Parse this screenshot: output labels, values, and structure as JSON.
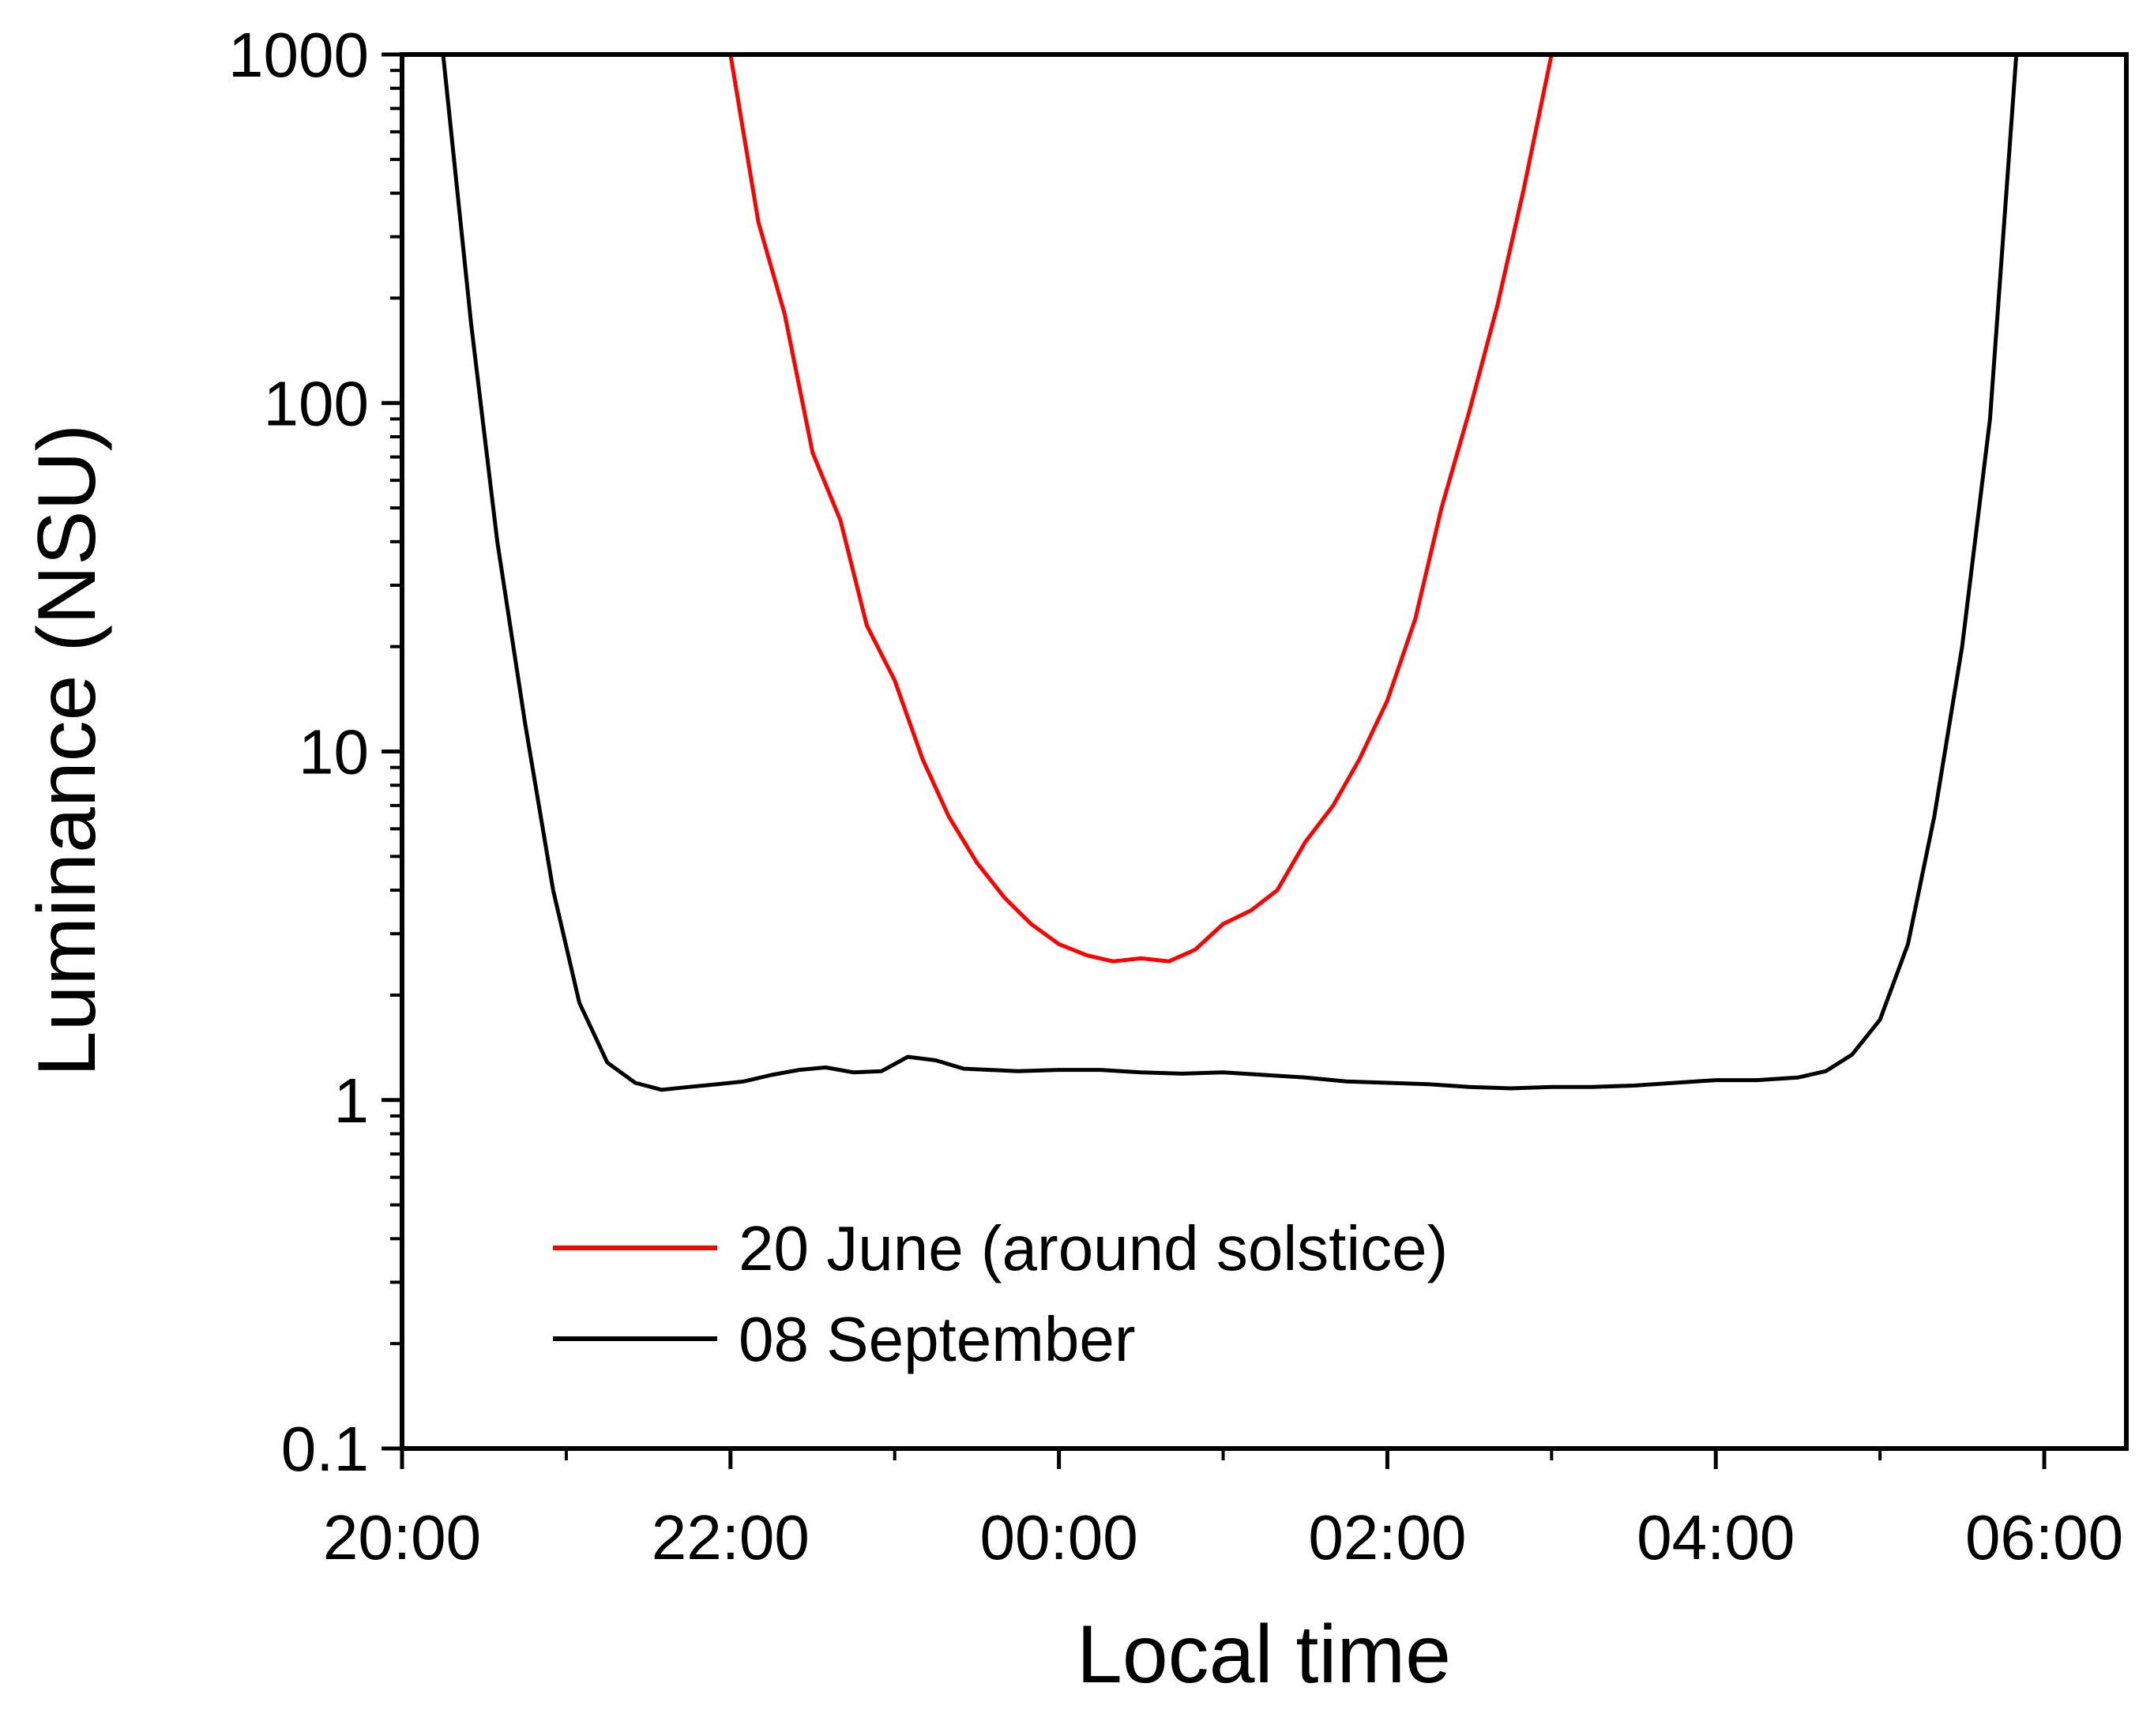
{
  "chart_data": {
    "type": "line",
    "xlabel": "Local time",
    "ylabel": "Luminance (NSU)",
    "yscale": "log",
    "ylim": [
      0.1,
      1000
    ],
    "xlim_hours": [
      20.0,
      30.5
    ],
    "x_ticks": [
      {
        "value": 20,
        "label": "20:00"
      },
      {
        "value": 22,
        "label": "22:00"
      },
      {
        "value": 24,
        "label": "00:00"
      },
      {
        "value": 26,
        "label": "02:00"
      },
      {
        "value": 28,
        "label": "04:00"
      },
      {
        "value": 30,
        "label": "06:00"
      }
    ],
    "y_ticks": [
      {
        "value": 0.1,
        "label": "0.1"
      },
      {
        "value": 1,
        "label": "1"
      },
      {
        "value": 10,
        "label": "10"
      },
      {
        "value": 100,
        "label": "100"
      },
      {
        "value": 1000,
        "label": "1000"
      }
    ],
    "legend_position": "bottom-left",
    "series": [
      {
        "name": "20 June (around solstice)",
        "color": "#ff0000",
        "x": [
          22.0,
          22.17,
          22.33,
          22.5,
          22.67,
          22.83,
          23.0,
          23.17,
          23.33,
          23.5,
          23.67,
          23.83,
          24.0,
          24.17,
          24.33,
          24.5,
          24.67,
          24.83,
          25.0,
          25.17,
          25.33,
          25.5,
          25.67,
          25.83,
          26.0,
          26.17,
          26.33,
          26.5,
          26.67,
          26.83,
          27.0
        ],
        "y": [
          1000,
          330,
          180,
          72,
          46,
          23,
          16,
          9.5,
          6.5,
          4.8,
          3.8,
          3.2,
          2.8,
          2.6,
          2.5,
          2.55,
          2.5,
          2.7,
          3.2,
          3.5,
          4.0,
          5.5,
          7.0,
          9.5,
          14,
          24,
          50,
          95,
          190,
          410,
          1000
        ]
      },
      {
        "name": "08 September",
        "color": "#000000",
        "x": [
          20.25,
          20.42,
          20.58,
          20.75,
          20.92,
          21.08,
          21.25,
          21.42,
          21.58,
          21.75,
          21.92,
          22.08,
          22.25,
          22.42,
          22.58,
          22.75,
          22.92,
          23.08,
          23.25,
          23.42,
          23.58,
          23.75,
          24.0,
          24.25,
          24.5,
          24.75,
          25.0,
          25.25,
          25.5,
          25.75,
          26.0,
          26.25,
          26.5,
          26.75,
          27.0,
          27.25,
          27.5,
          27.75,
          28.0,
          28.25,
          28.5,
          28.67,
          28.83,
          29.0,
          29.17,
          29.33,
          29.5,
          29.67,
          29.83
        ],
        "y": [
          1000,
          170,
          40,
          12,
          4.0,
          1.9,
          1.28,
          1.12,
          1.07,
          1.09,
          1.11,
          1.13,
          1.18,
          1.22,
          1.24,
          1.2,
          1.21,
          1.33,
          1.3,
          1.23,
          1.22,
          1.21,
          1.22,
          1.22,
          1.2,
          1.19,
          1.2,
          1.18,
          1.16,
          1.13,
          1.12,
          1.11,
          1.09,
          1.08,
          1.09,
          1.09,
          1.1,
          1.12,
          1.14,
          1.14,
          1.16,
          1.21,
          1.35,
          1.7,
          2.8,
          6.5,
          20,
          90,
          1000
        ]
      }
    ]
  }
}
